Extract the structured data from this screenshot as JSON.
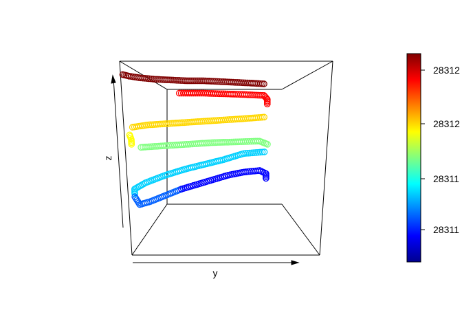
{
  "chart_data": {
    "type": "scatter",
    "title": "",
    "xlabel": "y",
    "ylabel": "z",
    "colorbar": {
      "tick_labels": [
        "28311",
        "28311",
        "28312",
        "28312"
      ],
      "palette": [
        "#00008F",
        "#0000FF",
        "#0080FF",
        "#00FFFF",
        "#80FF80",
        "#FFFF00",
        "#FF8000",
        "#FF0000",
        "#800000"
      ]
    },
    "series": [
      {
        "color": "#7F0000",
        "values": [
          [
            0.0,
            0.94
          ],
          [
            0.04,
            0.93
          ],
          [
            0.1,
            0.92
          ],
          [
            0.2,
            0.91
          ],
          [
            0.3,
            0.905
          ],
          [
            0.4,
            0.9
          ],
          [
            0.5,
            0.9
          ],
          [
            0.6,
            0.895
          ],
          [
            0.7,
            0.89
          ],
          [
            0.8,
            0.885
          ],
          [
            0.88,
            0.88
          ]
        ]
      },
      {
        "color": "#FF0000",
        "values": [
          [
            0.35,
            0.82
          ],
          [
            0.5,
            0.82
          ],
          [
            0.65,
            0.815
          ],
          [
            0.78,
            0.81
          ],
          [
            0.88,
            0.805
          ],
          [
            0.9,
            0.78
          ],
          [
            0.9,
            0.75
          ]
        ]
      },
      {
        "color": "#FFD700",
        "values": [
          [
            0.05,
            0.6
          ],
          [
            0.15,
            0.615
          ],
          [
            0.3,
            0.625
          ],
          [
            0.45,
            0.635
          ],
          [
            0.6,
            0.645
          ],
          [
            0.75,
            0.655
          ],
          [
            0.88,
            0.665
          ]
        ]
      },
      {
        "color": "#FFFF00",
        "values": [
          [
            0.03,
            0.55
          ],
          [
            0.04,
            0.52
          ],
          [
            0.04,
            0.49
          ]
        ]
      },
      {
        "color": "#80FF80",
        "values": [
          [
            0.1,
            0.47
          ],
          [
            0.25,
            0.48
          ],
          [
            0.4,
            0.49
          ],
          [
            0.55,
            0.5
          ],
          [
            0.7,
            0.505
          ],
          [
            0.85,
            0.51
          ],
          [
            0.9,
            0.49
          ]
        ]
      },
      {
        "color": "#00D0FF",
        "values": [
          [
            0.88,
            0.44
          ],
          [
            0.75,
            0.43
          ],
          [
            0.62,
            0.39
          ],
          [
            0.5,
            0.36
          ],
          [
            0.38,
            0.33
          ],
          [
            0.25,
            0.29
          ],
          [
            0.12,
            0.24
          ],
          [
            0.05,
            0.2
          ],
          [
            0.05,
            0.17
          ]
        ]
      },
      {
        "color": "#0060FF",
        "values": [
          [
            0.05,
            0.15
          ],
          [
            0.08,
            0.1
          ],
          [
            0.15,
            0.12
          ],
          [
            0.25,
            0.16
          ],
          [
            0.35,
            0.2
          ]
        ]
      },
      {
        "color": "#0000FF",
        "values": [
          [
            0.35,
            0.2
          ],
          [
            0.45,
            0.23
          ],
          [
            0.55,
            0.26
          ],
          [
            0.65,
            0.29
          ],
          [
            0.75,
            0.31
          ],
          [
            0.85,
            0.32
          ],
          [
            0.89,
            0.3
          ],
          [
            0.89,
            0.27
          ]
        ]
      }
    ]
  }
}
